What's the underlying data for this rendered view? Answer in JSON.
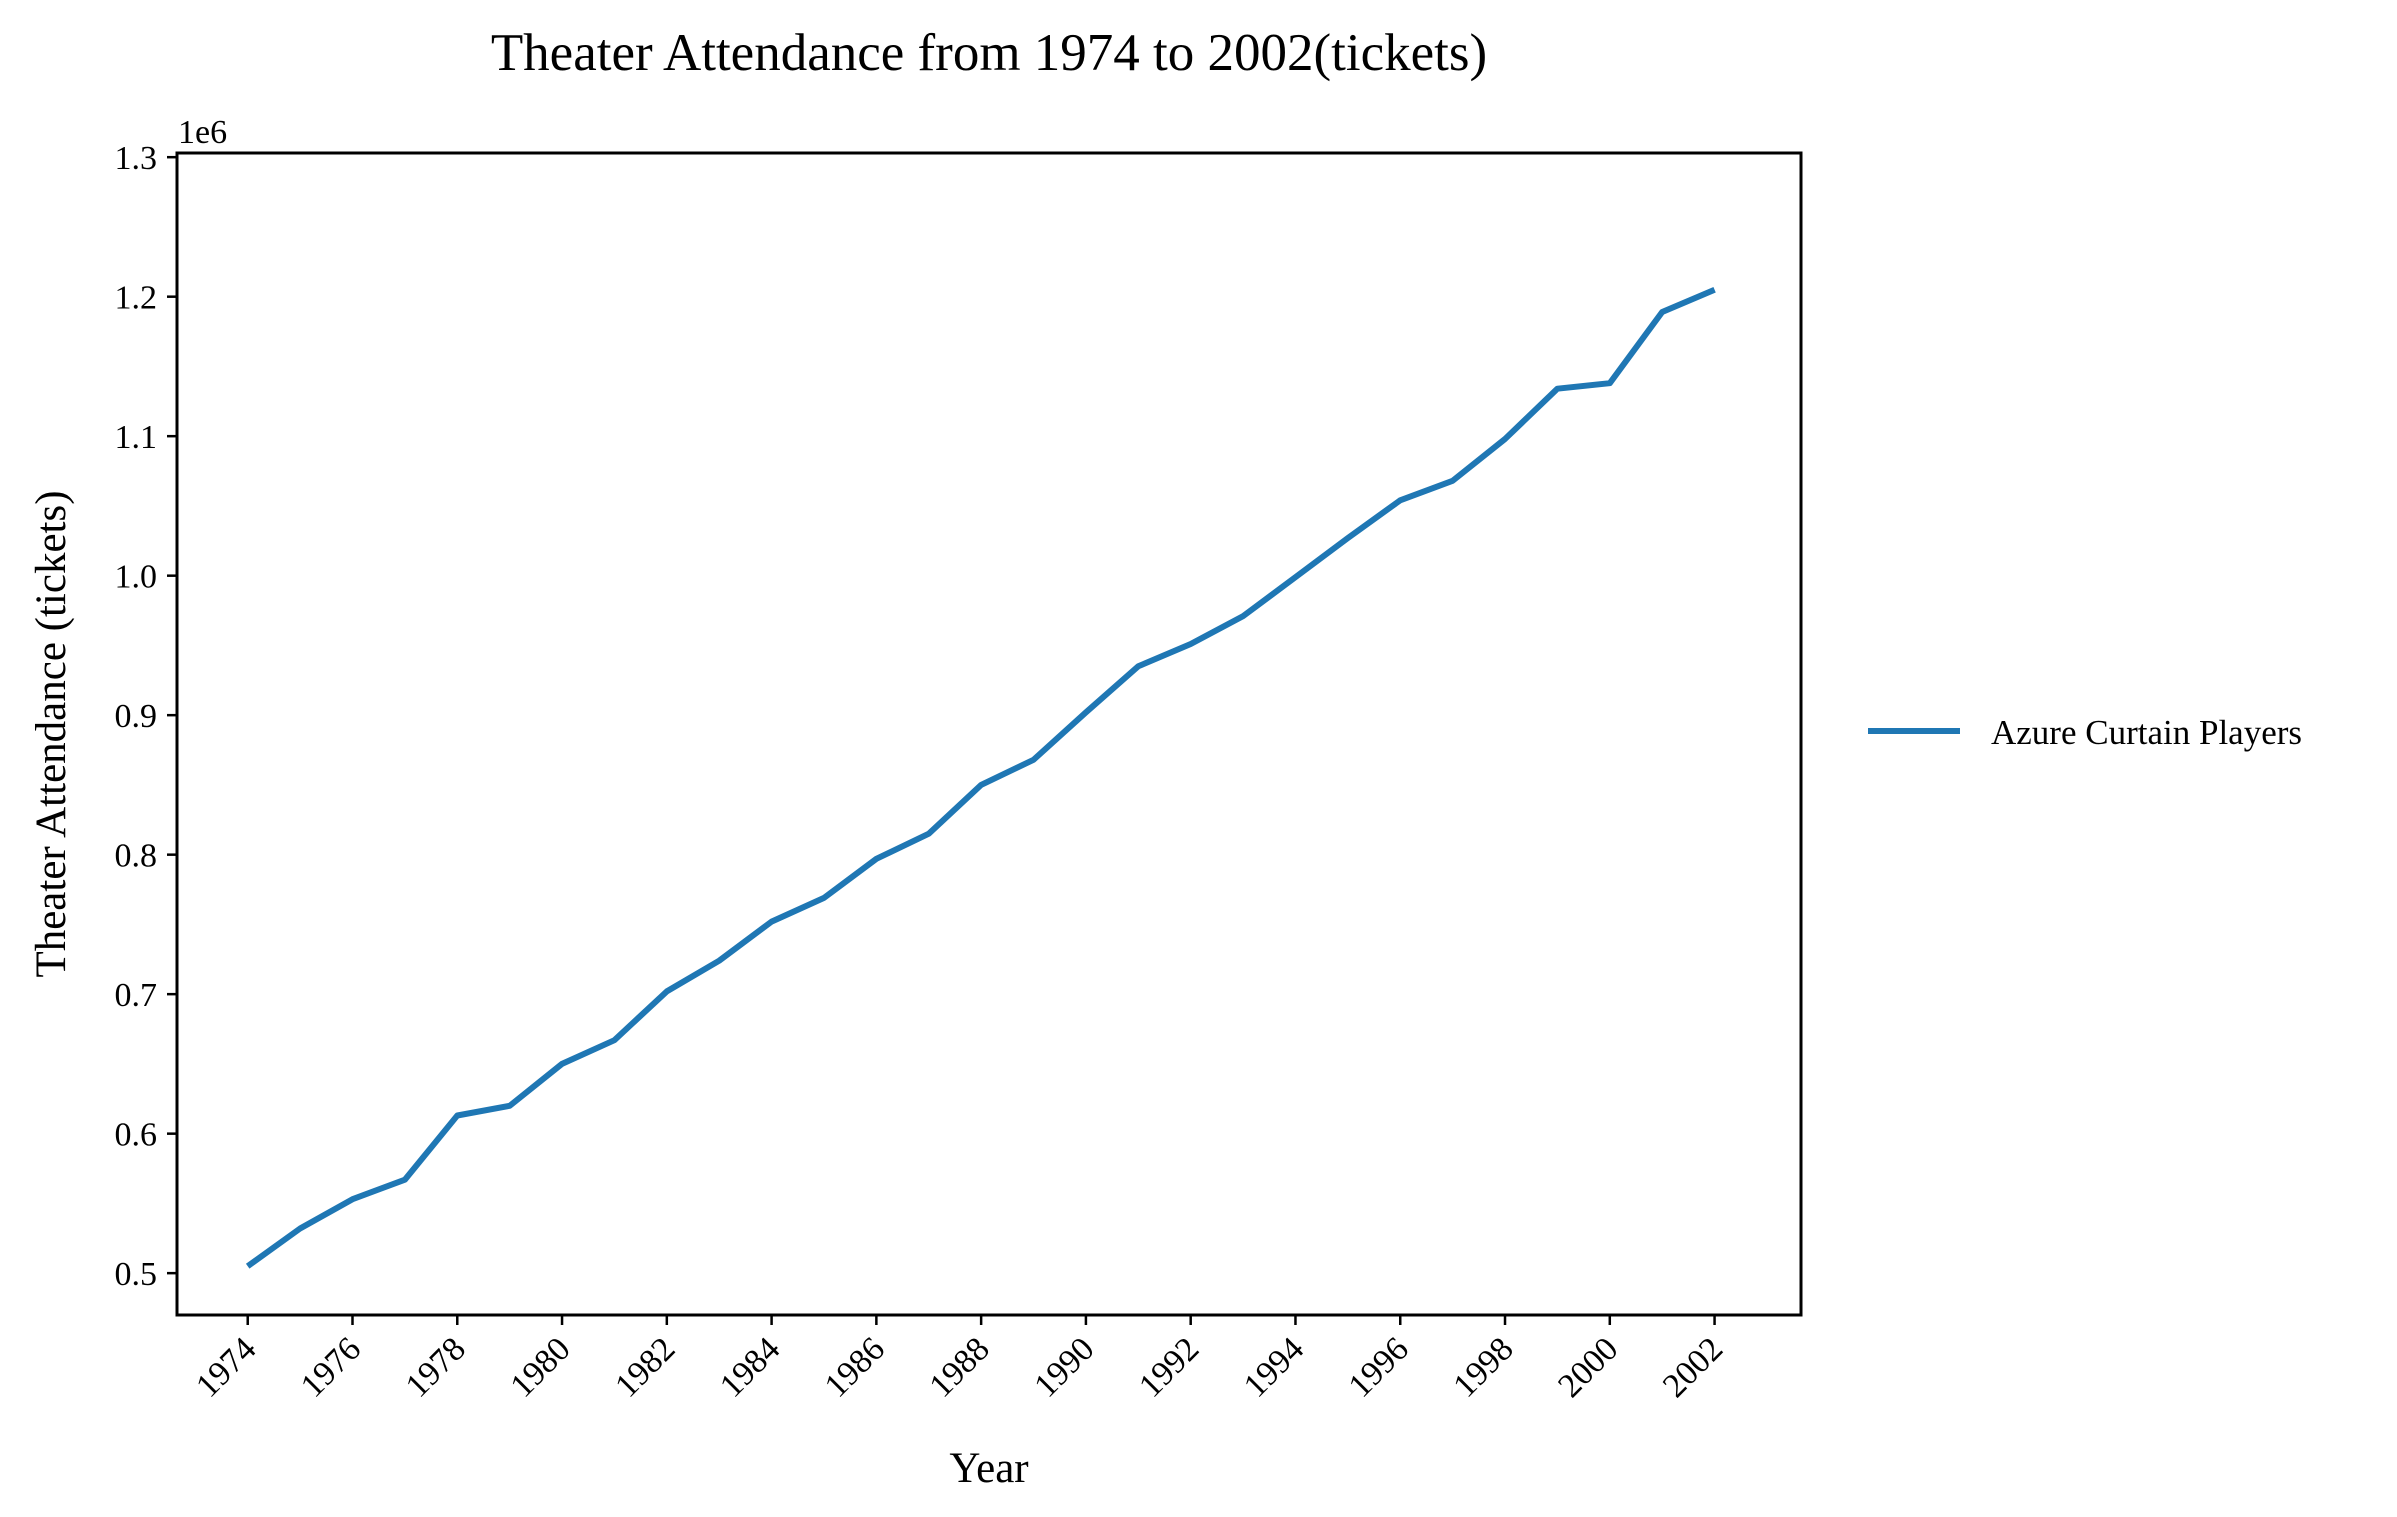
{
  "chart_data": {
    "type": "line",
    "title": "Theater Attendance from 1974 to 2002(tickets)",
    "xlabel": "Year",
    "ylabel": "Theater Attendance (tickets)",
    "y_offset_label": "1e6",
    "x": [
      1974,
      1975,
      1976,
      1977,
      1978,
      1979,
      1980,
      1981,
      1982,
      1983,
      1984,
      1985,
      1986,
      1987,
      1988,
      1989,
      1990,
      1991,
      1992,
      1993,
      1994,
      1995,
      1996,
      1997,
      1998,
      1999,
      2000,
      2001,
      2002
    ],
    "series": [
      {
        "name": "Azure Curtain Players",
        "color": "#1f77b4",
        "values": [
          505000,
          532000,
          553000,
          567000,
          613000,
          620000,
          650000,
          667000,
          702000,
          724000,
          752000,
          769000,
          797000,
          815000,
          850000,
          868000,
          902000,
          935000,
          951000,
          971000,
          999000,
          1027000,
          1054000,
          1068000,
          1098000,
          1134000,
          1138000,
          1189000,
          1205000
        ]
      }
    ],
    "xticks": [
      "1974",
      "1976",
      "1978",
      "1980",
      "1982",
      "1984",
      "1986",
      "1988",
      "1990",
      "1992",
      "1994",
      "1996",
      "1998",
      "2000",
      "2002"
    ],
    "yticks": [
      "0.5",
      "0.6",
      "0.7",
      "0.8",
      "0.9",
      "1.0",
      "1.1",
      "1.2",
      "1.3"
    ],
    "xlim": [
      1972.65,
      2003.65
    ],
    "ylim": [
      470000,
      1303000
    ],
    "grid": false,
    "legend_position": "right, outside plot"
  }
}
